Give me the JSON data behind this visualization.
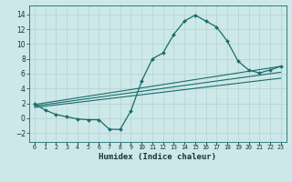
{
  "xlabel": "Humidex (Indice chaleur)",
  "bg_color": "#cce8e8",
  "grid_color": "#b8d4d4",
  "line_color": "#1a6b6b",
  "xlim": [
    -0.5,
    23.5
  ],
  "ylim": [
    -3.2,
    15.2
  ],
  "yticks": [
    -2,
    0,
    2,
    4,
    6,
    8,
    10,
    12,
    14
  ],
  "xtick_labels": [
    "0",
    "1",
    "2",
    "3",
    "4",
    "5",
    "6",
    "7",
    "8",
    "9",
    "10",
    "11",
    "12",
    "13",
    "14",
    "15",
    "16",
    "17",
    "18",
    "19",
    "20",
    "21",
    "22",
    "23"
  ],
  "main_curve": {
    "x": [
      0,
      1,
      2,
      3,
      4,
      5,
      6,
      7,
      8,
      9,
      10,
      11,
      12,
      13,
      14,
      15,
      16,
      17,
      18,
      19,
      20,
      21,
      22,
      23
    ],
    "y": [
      1.9,
      1.1,
      0.5,
      0.2,
      -0.1,
      -0.2,
      -0.2,
      -1.5,
      -1.5,
      1.0,
      5.0,
      8.0,
      8.8,
      11.3,
      13.1,
      13.9,
      13.1,
      12.3,
      10.4,
      7.7,
      6.5,
      6.1,
      6.5,
      7.0
    ]
  },
  "line1": {
    "x": [
      0,
      23
    ],
    "y": [
      1.85,
      7.0
    ]
  },
  "line2": {
    "x": [
      0,
      23
    ],
    "y": [
      1.65,
      6.2
    ]
  },
  "line3": {
    "x": [
      0,
      23
    ],
    "y": [
      1.45,
      5.4
    ]
  }
}
